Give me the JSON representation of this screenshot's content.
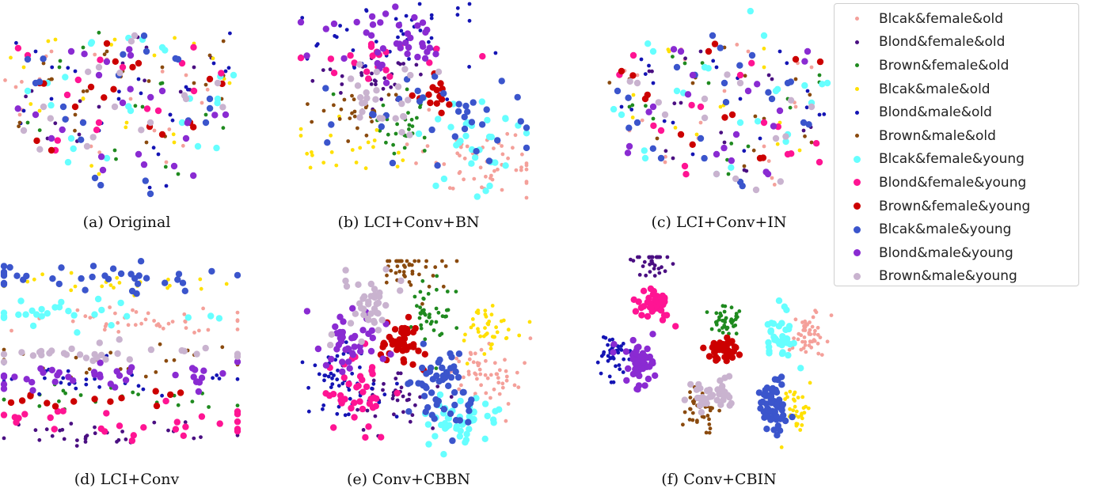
{
  "chart_data": [
    {
      "type": "scatter",
      "id": "a",
      "caption": "(a) Original",
      "arrangement": "mixed",
      "series": [
        {
          "class": 0,
          "x": [
            20,
            160,
            45,
            230,
            110,
            190,
            60,
            250,
            130,
            15,
            205,
            80
          ],
          "y": [
            140,
            120,
            95,
            90,
            180,
            160,
            60,
            125,
            70,
            105,
            200,
            145
          ]
        },
        {
          "class": 1,
          "x": [
            35,
            150,
            210,
            95,
            270,
            55,
            180,
            120,
            240
          ],
          "y": [
            110,
            75,
            140,
            165,
            100,
            170,
            55,
            130,
            80
          ]
        },
        {
          "class": 2,
          "x": [
            70,
            200,
            140,
            30,
            255,
            100,
            175,
            220
          ],
          "y": [
            80,
            100,
            185,
            150,
            140,
            55,
            130,
            215
          ]
        },
        {
          "class": 3,
          "x": [
            65,
            140,
            240,
            25,
            190,
            100,
            285,
            155,
            215,
            45,
            120
          ],
          "y": [
            45,
            45,
            50,
            80,
            65,
            120,
            100,
            150,
            175,
            135,
            215
          ]
        },
        {
          "class": 4,
          "x": [
            120,
            210,
            60,
            265,
            170,
            25,
            230,
            90,
            145,
            195,
            205,
            280,
            40
          ],
          "y": [
            160,
            140,
            120,
            75,
            95,
            135,
            105,
            85,
            120,
            190,
            230,
            85,
            60
          ]
        },
        {
          "class": 5,
          "x": [
            50,
            150,
            240,
            90,
            200,
            275,
            20,
            130,
            180,
            105,
            260,
            60
          ],
          "y": [
            75,
            85,
            100,
            140,
            80,
            120,
            150,
            60,
            175,
            110,
            65,
            95
          ]
        },
        {
          "class": 6,
          "x": [
            110,
            55,
            200,
            270,
            160,
            85,
            225,
            30,
            130,
            290,
            245,
            175
          ],
          "y": [
            50,
            100,
            55,
            120,
            135,
            170,
            150,
            110,
            195,
            90,
            180,
            45
          ]
        },
        {
          "class": 7,
          "x": [
            80,
            195,
            150,
            30,
            240,
            120,
            225,
            65
          ],
          "y": [
            115,
            135,
            80,
            65,
            110,
            150,
            75,
            185
          ]
        },
        {
          "class": 8,
          "x": [
            170,
            90,
            235,
            45,
            130,
            260,
            60,
            200,
            110
          ],
          "y": [
            75,
            130,
            150,
            100,
            50,
            95,
            185,
            165,
            105
          ]
        },
        {
          "class": 9,
          "x": [
            40,
            180,
            100,
            255,
            145,
            220,
            75,
            115,
            185,
            30,
            260
          ],
          "y": [
            100,
            60,
            150,
            150,
            90,
            70,
            130,
            220,
            240,
            70,
            120
          ]
        },
        {
          "class": 10,
          "x": [
            160,
            60,
            230,
            120,
            200,
            85,
            280,
            170,
            125,
            40,
            215,
            150
          ],
          "y": [
            65,
            170,
            170,
            90,
            110,
            60,
            140,
            190,
            210,
            140,
            205,
            125
          ]
        },
        {
          "class": 11,
          "x": [
            165,
            105,
            270,
            50,
            230,
            185,
            140,
            25,
            120
          ],
          "y": [
            40,
            180,
            100,
            130,
            120,
            150,
            130,
            160,
            80
          ]
        }
      ]
    },
    {
      "type": "scatter",
      "id": "b",
      "caption": "(b) LCI+Conv+BN",
      "arrangement": "clustered",
      "series": [
        {
          "class": 0,
          "cx": 230,
          "cy": 200,
          "sx": 38,
          "sy": 22,
          "n": 60
        },
        {
          "class": 1,
          "cx": 90,
          "cy": 95,
          "sx": 35,
          "sy": 18,
          "n": 34
        },
        {
          "class": 2,
          "cx": 125,
          "cy": 160,
          "sx": 26,
          "sy": 20,
          "n": 30
        },
        {
          "class": 3,
          "cx": 60,
          "cy": 180,
          "sx": 40,
          "sy": 18,
          "n": 22
        },
        {
          "class": 4,
          "cx": 110,
          "cy": 45,
          "sx": 60,
          "sy": 28,
          "n": 46
        },
        {
          "class": 5,
          "cx": 75,
          "cy": 140,
          "sx": 30,
          "sy": 16,
          "n": 26
        },
        {
          "class": 6,
          "cx": 210,
          "cy": 175,
          "sx": 42,
          "sy": 36,
          "n": 32
        },
        {
          "class": 7,
          "cx": 95,
          "cy": 70,
          "sx": 50,
          "sy": 16,
          "n": 20
        },
        {
          "class": 8,
          "cx": 170,
          "cy": 110,
          "sx": 18,
          "sy": 14,
          "n": 14
        },
        {
          "class": 9,
          "cx": 170,
          "cy": 150,
          "sx": 65,
          "sy": 32,
          "n": 36
        },
        {
          "class": 10,
          "cx": 115,
          "cy": 45,
          "sx": 40,
          "sy": 22,
          "n": 40
        },
        {
          "class": 11,
          "cx": 105,
          "cy": 120,
          "sx": 35,
          "sy": 18,
          "n": 26
        }
      ]
    },
    {
      "type": "scatter",
      "id": "c",
      "caption": "(c) LCI+Conv+IN",
      "arrangement": "mixed",
      "series": [
        {
          "class": 0,
          "x": [
            40,
            180,
            120,
            240,
            75,
            200,
            150,
            30,
            260,
            100,
            210
          ],
          "y": [
            90,
            60,
            150,
            130,
            200,
            180,
            110,
            160,
            80,
            70,
            220
          ]
        },
        {
          "class": 1,
          "x": [
            95,
            210,
            150,
            55,
            250,
            175,
            120,
            85
          ],
          "y": [
            125,
            95,
            175,
            85,
            160,
            210,
            60,
            195
          ]
        },
        {
          "class": 2,
          "x": [
            130,
            60,
            230,
            180,
            100,
            270,
            30,
            155
          ],
          "y": [
            100,
            145,
            120,
            180,
            75,
            90,
            130,
            215
          ]
        },
        {
          "class": 3,
          "x": [
            80,
            200,
            145,
            35,
            245,
            115,
            220
          ],
          "y": [
            60,
            80,
            130,
            115,
            185,
            165,
            150
          ]
        },
        {
          "class": 4,
          "x": [
            60,
            170,
            220,
            110,
            255,
            20,
            140,
            195,
            85,
            270,
            45
          ],
          "y": [
            100,
            120,
            60,
            190,
            110,
            130,
            80,
            170,
            150,
            140,
            70
          ]
        },
        {
          "class": 5,
          "x": [
            150,
            65,
            240,
            110,
            200,
            30,
            260,
            175
          ],
          "y": [
            55,
            170,
            95,
            100,
            145,
            95,
            175,
            205
          ]
        },
        {
          "class": 6,
          "x": [
            200,
            90,
            50,
            260,
            170,
            125,
            230,
            20,
            140,
            280,
            60,
            215
          ],
          "y": [
            40,
            110,
            195,
            125,
            150,
            80,
            165,
            140,
            215,
            100,
            60,
            110
          ]
        },
        {
          "class": 7,
          "x": [
            120,
            35,
            230,
            170,
            70,
            200,
            270,
            100
          ],
          "y": [
            130,
            65,
            190,
            90,
            160,
            150,
            200,
            205
          ]
        },
        {
          "class": 8,
          "x": [
            50,
            160,
            240,
            95,
            195,
            20,
            130
          ],
          "y": [
            120,
            140,
            70,
            165,
            195,
            85,
            60
          ]
        },
        {
          "class": 9,
          "x": [
            90,
            185,
            150,
            40,
            250,
            120,
            210,
            70,
            170,
            230,
            15,
            135
          ],
          "y": [
            80,
            65,
            100,
            150,
            150,
            170,
            120,
            195,
            225,
            100,
            110,
            40
          ]
        },
        {
          "class": 10,
          "x": [
            110,
            220,
            60,
            180,
            140,
            30,
            255,
            95,
            205,
            165
          ],
          "y": [
            90,
            135,
            130,
            110,
            190,
            180,
            60,
            60,
            215,
            165
          ]
        },
        {
          "class": 11,
          "x": [
            170,
            75,
            215,
            125,
            260,
            40,
            190,
            140
          ],
          "y": [
            100,
            140,
            170,
            120,
            130,
            100,
            235,
            215
          ]
        }
      ]
    },
    {
      "type": "scatter",
      "id": "d",
      "caption": "(d) LCI+Conv",
      "arrangement": "rows",
      "series": [
        {
          "class": 0,
          "cx": 150,
          "cy": 75,
          "sx": 85,
          "sy": 9,
          "n": 42
        },
        {
          "class": 1,
          "cx": 120,
          "cy": 215,
          "sx": 90,
          "sy": 9,
          "n": 32
        },
        {
          "class": 2,
          "cx": 130,
          "cy": 175,
          "sx": 80,
          "sy": 10,
          "n": 24
        },
        {
          "class": 3,
          "cx": 150,
          "cy": 30,
          "sx": 90,
          "sy": 8,
          "n": 24
        },
        {
          "class": 4,
          "cx": 120,
          "cy": 150,
          "sx": 90,
          "sy": 9,
          "n": 32
        },
        {
          "class": 5,
          "cx": 130,
          "cy": 125,
          "sx": 95,
          "sy": 9,
          "n": 24
        },
        {
          "class": 6,
          "cx": 100,
          "cy": 65,
          "sx": 75,
          "sy": 10,
          "n": 28
        },
        {
          "class": 7,
          "cx": 140,
          "cy": 205,
          "sx": 110,
          "sy": 12,
          "n": 28
        },
        {
          "class": 8,
          "cx": 130,
          "cy": 175,
          "sx": 100,
          "sy": 8,
          "n": 14
        },
        {
          "class": 9,
          "cx": 120,
          "cy": 22,
          "sx": 90,
          "sy": 10,
          "n": 36
        },
        {
          "class": 10,
          "cx": 120,
          "cy": 145,
          "sx": 95,
          "sy": 9,
          "n": 40
        },
        {
          "class": 11,
          "cx": 140,
          "cy": 115,
          "sx": 105,
          "sy": 8,
          "n": 30
        }
      ]
    },
    {
      "type": "scatter",
      "id": "e",
      "caption": "(e) Conv+CBBN",
      "arrangement": "clustered",
      "series": [
        {
          "class": 0,
          "cx": 235,
          "cy": 145,
          "sx": 22,
          "sy": 22,
          "n": 55
        },
        {
          "class": 1,
          "cx": 115,
          "cy": 180,
          "sx": 25,
          "sy": 20,
          "n": 38
        },
        {
          "class": 2,
          "cx": 160,
          "cy": 65,
          "sx": 18,
          "sy": 22,
          "n": 42
        },
        {
          "class": 3,
          "cx": 235,
          "cy": 85,
          "sx": 20,
          "sy": 18,
          "n": 40
        },
        {
          "class": 4,
          "cx": 50,
          "cy": 150,
          "sx": 25,
          "sy": 25,
          "n": 58
        },
        {
          "class": 5,
          "cx": 130,
          "cy": 10,
          "sx": 22,
          "sy": 14,
          "n": 42
        },
        {
          "class": 6,
          "cx": 200,
          "cy": 200,
          "sx": 25,
          "sy": 18,
          "n": 48
        },
        {
          "class": 7,
          "cx": 70,
          "cy": 170,
          "sx": 18,
          "sy": 28,
          "n": 40
        },
        {
          "class": 8,
          "cx": 125,
          "cy": 105,
          "sx": 15,
          "sy": 15,
          "n": 42
        },
        {
          "class": 9,
          "cx": 175,
          "cy": 160,
          "sx": 20,
          "sy": 25,
          "n": 58
        },
        {
          "class": 10,
          "cx": 60,
          "cy": 105,
          "sx": 22,
          "sy": 18,
          "n": 44
        },
        {
          "class": 11,
          "cx": 80,
          "cy": 55,
          "sx": 18,
          "sy": 20,
          "n": 40
        }
      ]
    },
    {
      "type": "scatter",
      "id": "f",
      "caption": "(f) Conv+CBIN",
      "arrangement": "clustered",
      "series": [
        {
          "class": 0,
          "cx": 265,
          "cy": 100,
          "sx": 12,
          "sy": 14,
          "n": 50
        },
        {
          "class": 1,
          "cx": 65,
          "cy": 5,
          "sx": 12,
          "sy": 14,
          "n": 36
        },
        {
          "class": 2,
          "cx": 160,
          "cy": 80,
          "sx": 10,
          "sy": 10,
          "n": 40
        },
        {
          "class": 3,
          "cx": 250,
          "cy": 190,
          "sx": 8,
          "sy": 14,
          "n": 32
        },
        {
          "class": 4,
          "cx": 20,
          "cy": 125,
          "sx": 10,
          "sy": 12,
          "n": 40
        },
        {
          "class": 5,
          "cx": 130,
          "cy": 200,
          "sx": 12,
          "sy": 14,
          "n": 36
        },
        {
          "class": 6,
          "cx": 230,
          "cy": 105,
          "sx": 10,
          "sy": 14,
          "n": 40
        },
        {
          "class": 7,
          "cx": 70,
          "cy": 60,
          "sx": 10,
          "sy": 10,
          "n": 38
        },
        {
          "class": 8,
          "cx": 160,
          "cy": 120,
          "sx": 10,
          "sy": 10,
          "n": 38
        },
        {
          "class": 9,
          "cx": 220,
          "cy": 190,
          "sx": 10,
          "sy": 16,
          "n": 58
        },
        {
          "class": 10,
          "cx": 55,
          "cy": 135,
          "sx": 10,
          "sy": 16,
          "n": 52
        },
        {
          "class": 11,
          "cx": 140,
          "cy": 175,
          "sx": 12,
          "sy": 10,
          "n": 40
        }
      ]
    }
  ],
  "legend": {
    "placement": "top-right",
    "items": [
      {
        "label": "Blcak&female&old",
        "color": "#f4a09a",
        "size": "small"
      },
      {
        "label": "Blond&female&old",
        "color": "#4a0f82",
        "size": "small"
      },
      {
        "label": "Brown&female&old",
        "color": "#1f8a1f",
        "size": "small"
      },
      {
        "label": "Blcak&male&old",
        "color": "#ffe000",
        "size": "small"
      },
      {
        "label": "Blond&male&old",
        "color": "#1414b4",
        "size": "small"
      },
      {
        "label": "Brown&male&old",
        "color": "#8a4a0e",
        "size": "small"
      },
      {
        "label": "Blcak&female&young",
        "color": "#66ffff",
        "size": "large"
      },
      {
        "label": "Blond&female&young",
        "color": "#ff1493",
        "size": "large"
      },
      {
        "label": "Brown&female&young",
        "color": "#cc0000",
        "size": "large"
      },
      {
        "label": "Blcak&male&young",
        "color": "#3b55cc",
        "size": "large"
      },
      {
        "label": "Blond&male&young",
        "color": "#8a2bd2",
        "size": "large"
      },
      {
        "label": "Brown&male&young",
        "color": "#c9b3cf",
        "size": "large"
      }
    ]
  }
}
